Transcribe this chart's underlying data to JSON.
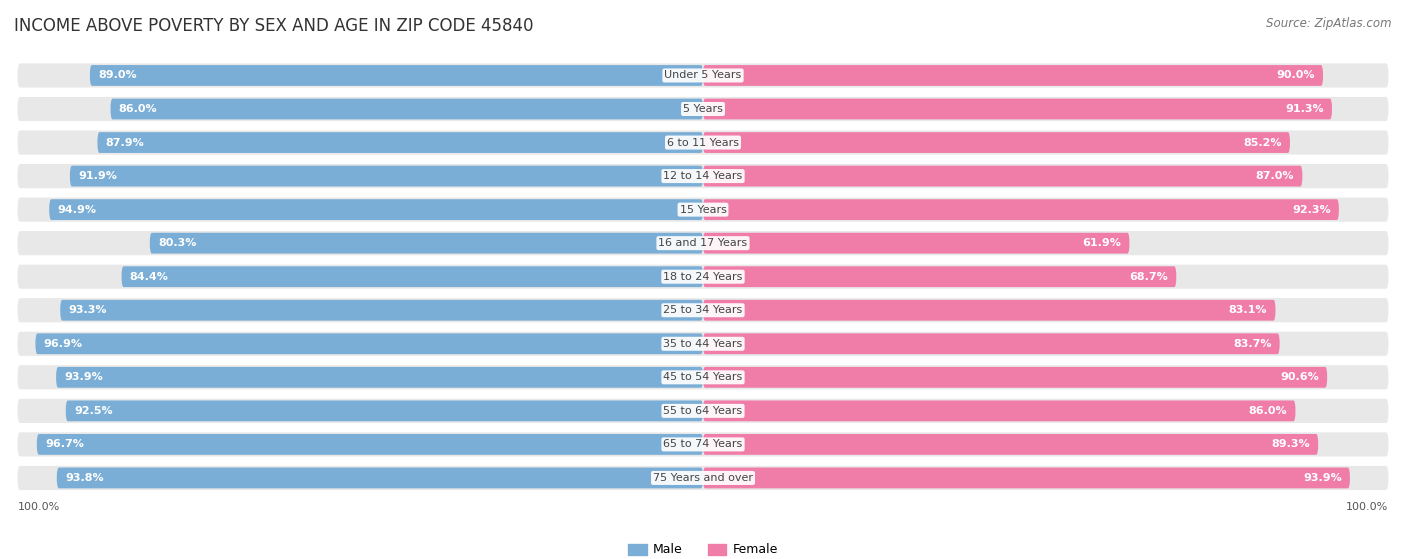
{
  "title": "INCOME ABOVE POVERTY BY SEX AND AGE IN ZIP CODE 45840",
  "source": "Source: ZipAtlas.com",
  "categories": [
    "Under 5 Years",
    "5 Years",
    "6 to 11 Years",
    "12 to 14 Years",
    "15 Years",
    "16 and 17 Years",
    "18 to 24 Years",
    "25 to 34 Years",
    "35 to 44 Years",
    "45 to 54 Years",
    "55 to 64 Years",
    "65 to 74 Years",
    "75 Years and over"
  ],
  "male_values": [
    89.0,
    86.0,
    87.9,
    91.9,
    94.9,
    80.3,
    84.4,
    93.3,
    96.9,
    93.9,
    92.5,
    96.7,
    93.8
  ],
  "female_values": [
    90.0,
    91.3,
    85.2,
    87.0,
    92.3,
    61.9,
    68.7,
    83.1,
    83.7,
    90.6,
    86.0,
    89.3,
    93.9
  ],
  "male_color": "#7aaed6",
  "female_color": "#f07ca8",
  "male_light_color": "#c8dff0",
  "female_light_color": "#fad0e0",
  "male_label_color": "#ffffff",
  "female_label_color": "#ffffff",
  "background_color": "#ffffff",
  "row_bg_color": "#e8e8e8",
  "title_fontsize": 12,
  "source_fontsize": 8.5,
  "label_fontsize": 8,
  "category_fontsize": 8,
  "legend_fontsize": 9,
  "axis_label_fontsize": 8
}
